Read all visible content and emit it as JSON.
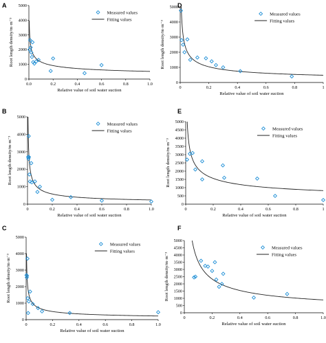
{
  "colors": {
    "marker": "#1f8fd6",
    "fit_line": "#222222",
    "axis": "#000000"
  },
  "chart_data": [
    {
      "panel": "A",
      "type": "scatter",
      "xlabel": "Relative value of soil water suction",
      "ylabel": "Root length density/m·m⁻³",
      "xlim": [
        0,
        1.0
      ],
      "ylim": [
        0,
        5000
      ],
      "xticks": [
        "0.0",
        "0.2",
        "0.4",
        "0.6",
        "0.8",
        "1.0"
      ],
      "yticks": [
        "0",
        "1000",
        "2000",
        "3000",
        "4000",
        "5000"
      ],
      "legend": [
        "Measured values",
        "Fitting values"
      ],
      "legend_position": "top-right",
      "fit": {
        "a": 520,
        "b": 0.35
      },
      "points": [
        [
          0.005,
          2000
        ],
        [
          0.01,
          2650
        ],
        [
          0.015,
          2150
        ],
        [
          0.02,
          1800
        ],
        [
          0.025,
          1500
        ],
        [
          0.03,
          2500
        ],
        [
          0.035,
          1150
        ],
        [
          0.045,
          1050
        ],
        [
          0.06,
          1200
        ],
        [
          0.08,
          1300
        ],
        [
          0.2,
          1400
        ],
        [
          0.18,
          550
        ],
        [
          0.46,
          400
        ],
        [
          0.6,
          950
        ]
      ]
    },
    {
      "panel": "D",
      "type": "scatter",
      "xlabel": "Relative value of soil water suction",
      "ylabel": "Root length density/m·m⁻³",
      "xlim": [
        0,
        1.0
      ],
      "ylim": [
        0,
        5000
      ],
      "xticks": [
        "0",
        "0.2",
        "0.4",
        "0.6",
        "0.8",
        "1"
      ],
      "yticks": [
        "0",
        "1000",
        "2000",
        "3000",
        "4000",
        "5000"
      ],
      "legend": [
        "Measured values",
        "Fitting values"
      ],
      "legend_position": "top-right",
      "fit": {
        "a": 480,
        "b": 0.48
      },
      "points": [
        [
          0.005,
          4750
        ],
        [
          0.01,
          2800
        ],
        [
          0.02,
          2500
        ],
        [
          0.03,
          2000
        ],
        [
          0.05,
          2850
        ],
        [
          0.07,
          1500
        ],
        [
          0.12,
          1650
        ],
        [
          0.18,
          1600
        ],
        [
          0.22,
          1400
        ],
        [
          0.25,
          1150
        ],
        [
          0.3,
          1000
        ],
        [
          0.42,
          750
        ],
        [
          0.78,
          400
        ]
      ]
    },
    {
      "panel": "B",
      "type": "scatter",
      "xlabel": "Relative value of soil water suction",
      "ylabel": "Root length density/m·m⁻³",
      "xlim": [
        0,
        1.0
      ],
      "ylim": [
        0,
        5000
      ],
      "xticks": [
        "0",
        "0.2",
        "0.4",
        "0.6",
        "0.8",
        "1.0"
      ],
      "yticks": [
        "0",
        "1000",
        "2000",
        "3000",
        "4000",
        "5000"
      ],
      "legend": [
        "Measured values",
        "Fitting values"
      ],
      "legend_position": "top-right",
      "fit": {
        "a": 240,
        "b": 0.55
      },
      "points": [
        [
          0.005,
          2700
        ],
        [
          0.008,
          2600
        ],
        [
          0.01,
          3900
        ],
        [
          0.012,
          2700
        ],
        [
          0.015,
          1700
        ],
        [
          0.02,
          1300
        ],
        [
          0.03,
          2350
        ],
        [
          0.035,
          1250
        ],
        [
          0.06,
          1300
        ],
        [
          0.1,
          1000
        ],
        [
          0.08,
          700
        ],
        [
          0.2,
          250
        ],
        [
          0.35,
          400
        ],
        [
          0.6,
          200
        ],
        [
          1.0,
          150
        ]
      ]
    },
    {
      "panel": "E",
      "type": "scatter",
      "xlabel": "Relative value of soil water suction",
      "ylabel": "Root length density/m·m⁻³",
      "xlim": [
        0,
        1.0
      ],
      "ylim": [
        0,
        5000
      ],
      "xticks": [
        "0",
        "0.2",
        "0.4",
        "0.6",
        "0.8",
        "1"
      ],
      "yticks": [
        "0",
        "500",
        "1000",
        "1500",
        "2000",
        "2500",
        "3000",
        "3500",
        "4000",
        "4500",
        "5000"
      ],
      "legend": [
        "Measured values",
        "Fitting values"
      ],
      "legend_position": "top-right",
      "fit": {
        "a": 820,
        "b": 0.4
      },
      "points": [
        [
          0.01,
          2700
        ],
        [
          0.03,
          3050
        ],
        [
          0.05,
          3100
        ],
        [
          0.07,
          2100
        ],
        [
          0.12,
          1500
        ],
        [
          0.12,
          2600
        ],
        [
          0.27,
          2350
        ],
        [
          0.28,
          1600
        ],
        [
          0.52,
          1550
        ],
        [
          0.65,
          500
        ],
        [
          1.0,
          250
        ]
      ]
    },
    {
      "panel": "C",
      "type": "scatter",
      "xlabel": "Relative value of soil water suction",
      "ylabel": "Root length density/m·m⁻³",
      "xlim": [
        0,
        1.0
      ],
      "ylim": [
        0,
        5000
      ],
      "xticks": [
        "0",
        "0.2",
        "0.4",
        "0.6",
        "0.8",
        "1.0"
      ],
      "yticks": [
        "0",
        "1000",
        "2000",
        "3000",
        "4000",
        "5000"
      ],
      "legend": [
        "Measured values",
        "Fitting values"
      ],
      "legend_position": "top-right",
      "fit": {
        "a": 220,
        "b": 0.5
      },
      "points": [
        [
          0.003,
          2700
        ],
        [
          0.005,
          2550
        ],
        [
          0.007,
          2650
        ],
        [
          0.01,
          3700
        ],
        [
          0.012,
          1300
        ],
        [
          0.015,
          400
        ],
        [
          0.02,
          1100
        ],
        [
          0.03,
          1700
        ],
        [
          0.05,
          950
        ],
        [
          0.09,
          700
        ],
        [
          0.12,
          500
        ],
        [
          0.33,
          400
        ],
        [
          1.0,
          450
        ]
      ]
    },
    {
      "panel": "F",
      "type": "scatter",
      "xlabel": "Relative value of soil water suction",
      "ylabel": "Root length density/m·m⁻³",
      "xlim": [
        0,
        1.0
      ],
      "ylim": [
        0,
        5000
      ],
      "xticks": [
        "0",
        "0.2",
        "0.4",
        "0.6",
        "0.8",
        "1.0"
      ],
      "yticks": [
        "0",
        "500",
        "1000",
        "1500",
        "2000",
        "2500",
        "3000",
        "3500",
        "4000",
        "4500",
        "5000"
      ],
      "legend": [
        "Measured values",
        "Fitting values"
      ],
      "legend_position": "top-right",
      "fit": {
        "a": 890,
        "b": 0.6
      },
      "points": [
        [
          0.07,
          2450
        ],
        [
          0.08,
          2500
        ],
        [
          0.12,
          3600
        ],
        [
          0.15,
          3250
        ],
        [
          0.17,
          3200
        ],
        [
          0.2,
          2900
        ],
        [
          0.22,
          3500
        ],
        [
          0.23,
          2300
        ],
        [
          0.25,
          1800
        ],
        [
          0.27,
          2000
        ],
        [
          0.28,
          2700
        ],
        [
          0.5,
          1050
        ],
        [
          0.74,
          1300
        ]
      ]
    }
  ]
}
